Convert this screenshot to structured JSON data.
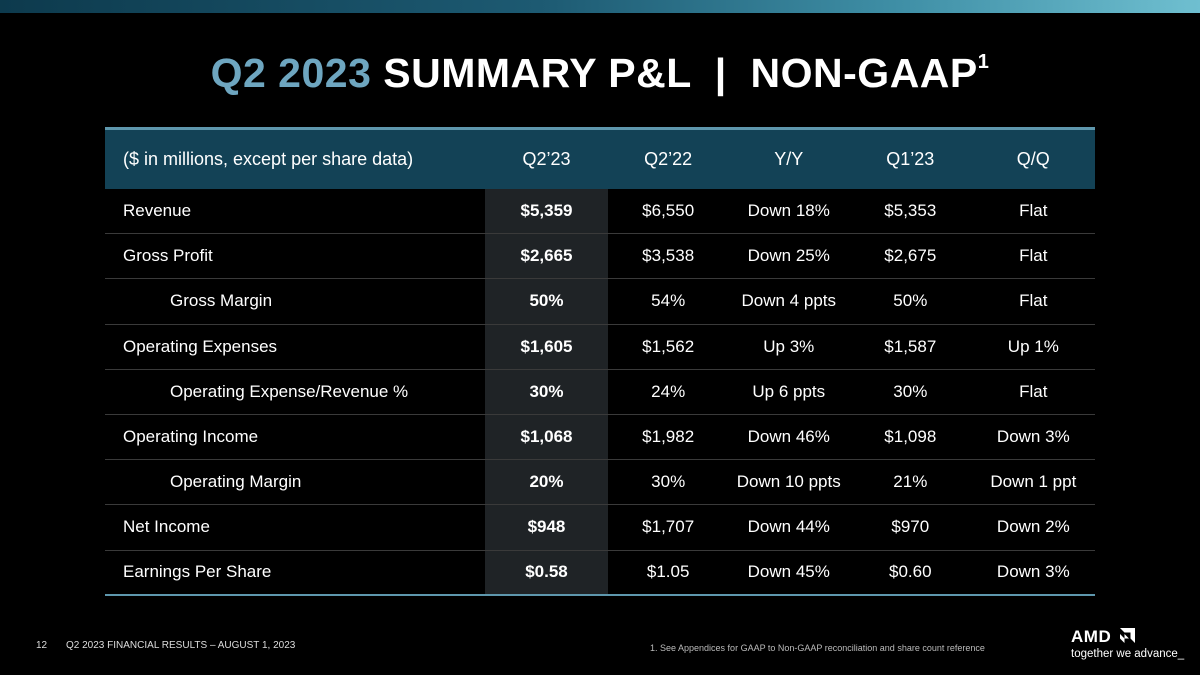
{
  "slide": {
    "title_accent": "Q2 2023",
    "title_main": "SUMMARY P&L  |  NON-GAAP",
    "title_sup": "1",
    "page_number": "12",
    "footer_text": "Q2 2023 FINANCIAL RESULTS – AUGUST 1, 2023",
    "footnote": "1.  See Appendices for GAAP to Non-GAAP reconciliation and share count reference"
  },
  "table": {
    "headers": [
      "($ in millions, except per share data)",
      "Q2’23",
      "Q2’22",
      "Y/Y",
      "Q1’23",
      "Q/Q"
    ],
    "rows": [
      {
        "label": "Revenue",
        "indent": false,
        "values": [
          "$5,359",
          "$6,550",
          "Down 18%",
          "$5,353",
          "Flat"
        ]
      },
      {
        "label": "Gross Profit",
        "indent": false,
        "values": [
          "$2,665",
          "$3,538",
          "Down 25%",
          "$2,675",
          "Flat"
        ]
      },
      {
        "label": "Gross Margin",
        "indent": true,
        "values": [
          "50%",
          "54%",
          "Down 4 ppts",
          "50%",
          "Flat"
        ]
      },
      {
        "label": "Operating Expenses",
        "indent": false,
        "values": [
          "$1,605",
          "$1,562",
          "Up 3%",
          "$1,587",
          "Up 1%"
        ]
      },
      {
        "label": "Operating Expense/Revenue %",
        "indent": true,
        "values": [
          "30%",
          "24%",
          "Up 6 ppts",
          "30%",
          "Flat"
        ]
      },
      {
        "label": "Operating Income",
        "indent": false,
        "values": [
          "$1,068",
          "$1,982",
          "Down 46%",
          "$1,098",
          "Down 3%"
        ]
      },
      {
        "label": "Operating Margin",
        "indent": true,
        "values": [
          "20%",
          "30%",
          "Down 10 ppts",
          "21%",
          "Down 1 ppt"
        ]
      },
      {
        "label": "Net Income",
        "indent": false,
        "values": [
          "$948",
          "$1,707",
          "Down 44%",
          "$970",
          "Down 2%"
        ]
      },
      {
        "label": "Earnings Per Share",
        "indent": false,
        "values": [
          "$0.58",
          "$1.05",
          "Down 45%",
          "$0.60",
          "Down 3%"
        ]
      }
    ]
  },
  "logo": {
    "wordmark": "AMD",
    "tagline": "together we advance_"
  },
  "colors": {
    "accent": "#6ea6c0",
    "header_bg": "#134256",
    "highlight_column_bg": "#1f2326",
    "rule": "#5e97ad"
  }
}
